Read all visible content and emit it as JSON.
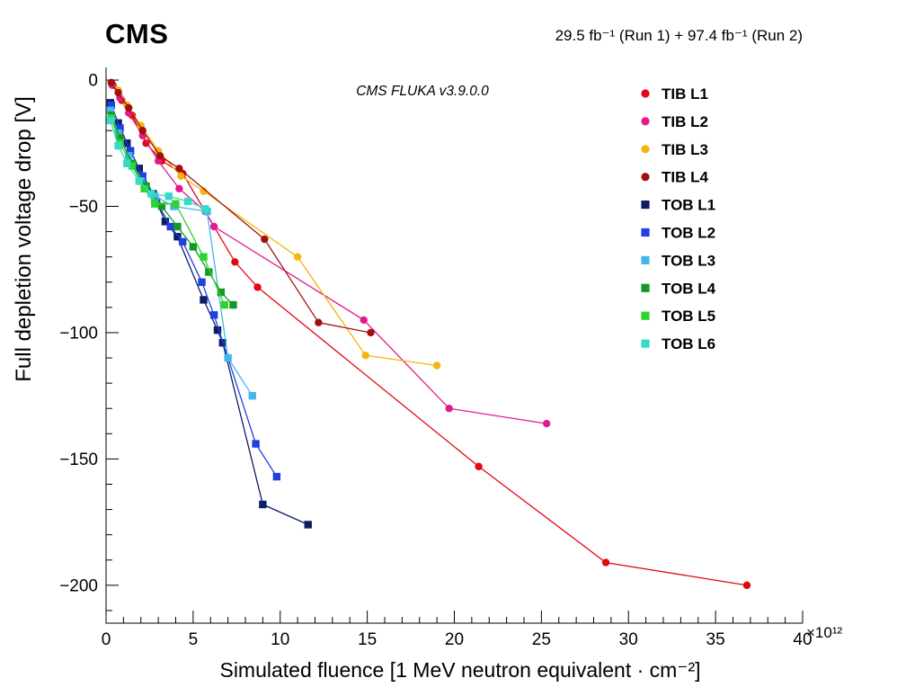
{
  "header": {
    "experiment": "CMS",
    "lumi": "29.5 fb⁻¹ (Run 1) + 97.4 fb⁻¹ (Run 2)"
  },
  "annotation": "CMS FLUKA v3.9.0.0",
  "chart_data": {
    "type": "line",
    "title": "",
    "xlabel": "Simulated fluence [1 MeV neutron equivalent · cm⁻²]",
    "ylabel": "Full depletion voltage drop [V]",
    "x_scale_note": "×10¹²",
    "xlim": [
      0,
      40
    ],
    "ylim": [
      -215,
      5
    ],
    "x_major_ticks": [
      0,
      5,
      10,
      15,
      20,
      25,
      30,
      35,
      40
    ],
    "x_minor_step": 1,
    "y_major_ticks": [
      0,
      -50,
      -100,
      -150,
      -200
    ],
    "y_minor_step": 10,
    "grid": false,
    "legend_position": "top-right",
    "series": [
      {
        "name": "TIB L1",
        "marker": "circle",
        "color": "#e30613",
        "points": [
          [
            0.4,
            -2
          ],
          [
            0.9,
            -8
          ],
          [
            1.5,
            -14
          ],
          [
            2.3,
            -25
          ],
          [
            3.2,
            -32
          ],
          [
            4.4,
            -37
          ],
          [
            7.4,
            -72
          ],
          [
            8.7,
            -82
          ],
          [
            21.4,
            -153
          ],
          [
            28.7,
            -191
          ],
          [
            36.8,
            -200
          ]
        ]
      },
      {
        "name": "TIB L2",
        "marker": "circle",
        "color": "#e31a8d",
        "points": [
          [
            0.35,
            -2
          ],
          [
            0.8,
            -7
          ],
          [
            1.3,
            -13
          ],
          [
            2.1,
            -22
          ],
          [
            3.0,
            -32
          ],
          [
            4.2,
            -43
          ],
          [
            5.7,
            -52
          ],
          [
            6.2,
            -58
          ],
          [
            14.8,
            -95
          ],
          [
            19.7,
            -130
          ],
          [
            25.3,
            -136
          ]
        ]
      },
      {
        "name": "TIB L3",
        "marker": "circle",
        "color": "#f6b40e",
        "points": [
          [
            0.3,
            -1
          ],
          [
            0.7,
            -4
          ],
          [
            1.2,
            -10
          ],
          [
            2.0,
            -18
          ],
          [
            3.0,
            -28
          ],
          [
            4.3,
            -38
          ],
          [
            5.6,
            -44
          ],
          [
            11.0,
            -70
          ],
          [
            14.9,
            -109
          ],
          [
            19.0,
            -113
          ]
        ]
      },
      {
        "name": "TIB L4",
        "marker": "circle",
        "color": "#a01010",
        "points": [
          [
            0.3,
            -1
          ],
          [
            0.7,
            -5
          ],
          [
            1.3,
            -11
          ],
          [
            2.1,
            -20
          ],
          [
            3.1,
            -30
          ],
          [
            4.2,
            -35
          ],
          [
            9.1,
            -63
          ],
          [
            12.2,
            -96
          ],
          [
            15.2,
            -100
          ]
        ]
      },
      {
        "name": "TOB L1",
        "marker": "square",
        "color": "#0c1d66",
        "points": [
          [
            0.25,
            -9
          ],
          [
            0.7,
            -17
          ],
          [
            1.2,
            -25
          ],
          [
            1.9,
            -35
          ],
          [
            2.7,
            -45
          ],
          [
            3.4,
            -56
          ],
          [
            4.1,
            -62
          ],
          [
            5.6,
            -87
          ],
          [
            6.4,
            -99
          ],
          [
            6.7,
            -104
          ],
          [
            9.0,
            -168
          ],
          [
            11.6,
            -176
          ]
        ]
      },
      {
        "name": "TOB L2",
        "marker": "square",
        "color": "#2040e0",
        "points": [
          [
            0.3,
            -10
          ],
          [
            0.8,
            -19
          ],
          [
            1.4,
            -28
          ],
          [
            2.1,
            -38
          ],
          [
            2.9,
            -48
          ],
          [
            3.7,
            -58
          ],
          [
            4.4,
            -64
          ],
          [
            5.5,
            -80
          ],
          [
            6.2,
            -93
          ],
          [
            8.6,
            -144
          ],
          [
            9.8,
            -157
          ]
        ]
      },
      {
        "name": "TOB L3",
        "marker": "square",
        "color": "#45b6e8",
        "points": [
          [
            0.25,
            -12
          ],
          [
            0.7,
            -21
          ],
          [
            1.3,
            -30
          ],
          [
            2.0,
            -40
          ],
          [
            2.8,
            -46
          ],
          [
            3.9,
            -50
          ],
          [
            5.8,
            -52
          ],
          [
            7.0,
            -110
          ],
          [
            8.4,
            -125
          ]
        ]
      },
      {
        "name": "TOB L4",
        "marker": "square",
        "color": "#149a24",
        "points": [
          [
            0.3,
            -14
          ],
          [
            0.8,
            -23
          ],
          [
            1.5,
            -33
          ],
          [
            2.3,
            -42
          ],
          [
            3.2,
            -50
          ],
          [
            4.1,
            -58
          ],
          [
            5.0,
            -66
          ],
          [
            5.9,
            -76
          ],
          [
            6.6,
            -84
          ],
          [
            7.3,
            -89
          ]
        ]
      },
      {
        "name": "TOB L5",
        "marker": "square",
        "color": "#2ed32e",
        "points": [
          [
            0.3,
            -15
          ],
          [
            0.8,
            -25
          ],
          [
            1.5,
            -34
          ],
          [
            2.2,
            -43
          ],
          [
            2.8,
            -49
          ],
          [
            4.0,
            -49
          ],
          [
            5.6,
            -70
          ],
          [
            6.8,
            -89
          ]
        ]
      },
      {
        "name": "TOB L6",
        "marker": "square",
        "color": "#35dcc5",
        "points": [
          [
            0.25,
            -16
          ],
          [
            0.7,
            -26
          ],
          [
            1.2,
            -33
          ],
          [
            1.9,
            -40
          ],
          [
            2.6,
            -45
          ],
          [
            3.6,
            -46
          ],
          [
            4.7,
            -48
          ],
          [
            5.7,
            -51
          ]
        ]
      }
    ]
  }
}
